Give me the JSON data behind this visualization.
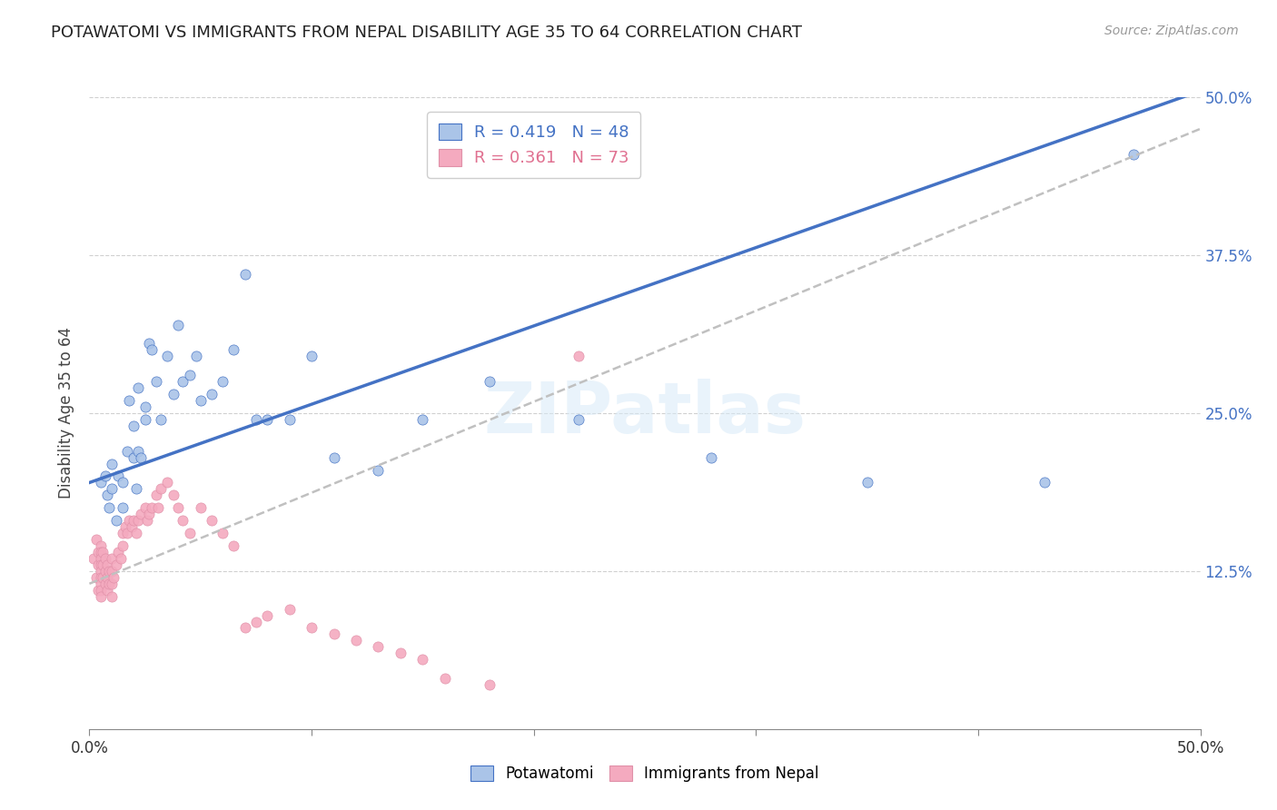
{
  "title": "POTAWATOMI VS IMMIGRANTS FROM NEPAL DISABILITY AGE 35 TO 64 CORRELATION CHART",
  "source": "Source: ZipAtlas.com",
  "ylabel": "Disability Age 35 to 64",
  "r_potawatomi": 0.419,
  "n_potawatomi": 48,
  "r_nepal": 0.361,
  "n_nepal": 73,
  "color_potawatomi": "#aac4e8",
  "color_nepal": "#f4aabf",
  "line_color_potawatomi": "#4472c4",
  "line_color_nepal": "#c0c0c0",
  "xlim": [
    0.0,
    0.5
  ],
  "ylim": [
    0.0,
    0.5
  ],
  "yticks": [
    0.125,
    0.25,
    0.375,
    0.5
  ],
  "ytick_labels": [
    "12.5%",
    "25.0%",
    "37.5%",
    "50.0%"
  ],
  "xticks": [
    0.0,
    0.1,
    0.2,
    0.3,
    0.4,
    0.5
  ],
  "xtick_labels": [
    "0.0%",
    "",
    "",
    "",
    "",
    "50.0%"
  ],
  "watermark": "ZIPatlas",
  "pot_intercept": 0.195,
  "pot_slope": 0.62,
  "nep_intercept": 0.115,
  "nep_slope": 0.72,
  "potawatomi_x": [
    0.005,
    0.007,
    0.008,
    0.009,
    0.01,
    0.01,
    0.012,
    0.013,
    0.015,
    0.015,
    0.017,
    0.018,
    0.02,
    0.02,
    0.021,
    0.022,
    0.022,
    0.023,
    0.025,
    0.025,
    0.027,
    0.028,
    0.03,
    0.032,
    0.035,
    0.038,
    0.04,
    0.042,
    0.045,
    0.048,
    0.05,
    0.055,
    0.06,
    0.065,
    0.07,
    0.075,
    0.08,
    0.09,
    0.1,
    0.11,
    0.13,
    0.15,
    0.18,
    0.22,
    0.28,
    0.35,
    0.43,
    0.47
  ],
  "potawatomi_y": [
    0.195,
    0.2,
    0.185,
    0.175,
    0.21,
    0.19,
    0.165,
    0.2,
    0.195,
    0.175,
    0.22,
    0.26,
    0.215,
    0.24,
    0.19,
    0.27,
    0.22,
    0.215,
    0.245,
    0.255,
    0.305,
    0.3,
    0.275,
    0.245,
    0.295,
    0.265,
    0.32,
    0.275,
    0.28,
    0.295,
    0.26,
    0.265,
    0.275,
    0.3,
    0.36,
    0.245,
    0.245,
    0.245,
    0.295,
    0.215,
    0.205,
    0.245,
    0.275,
    0.245,
    0.215,
    0.195,
    0.195,
    0.455
  ],
  "nepal_x": [
    0.002,
    0.003,
    0.003,
    0.004,
    0.004,
    0.004,
    0.005,
    0.005,
    0.005,
    0.005,
    0.005,
    0.005,
    0.005,
    0.005,
    0.005,
    0.006,
    0.006,
    0.006,
    0.007,
    0.007,
    0.007,
    0.008,
    0.008,
    0.008,
    0.009,
    0.009,
    0.01,
    0.01,
    0.01,
    0.01,
    0.011,
    0.012,
    0.013,
    0.014,
    0.015,
    0.015,
    0.016,
    0.017,
    0.018,
    0.019,
    0.02,
    0.021,
    0.022,
    0.023,
    0.025,
    0.026,
    0.027,
    0.028,
    0.03,
    0.031,
    0.032,
    0.035,
    0.038,
    0.04,
    0.042,
    0.045,
    0.05,
    0.055,
    0.06,
    0.065,
    0.07,
    0.075,
    0.08,
    0.09,
    0.1,
    0.11,
    0.12,
    0.13,
    0.14,
    0.15,
    0.16,
    0.18,
    0.22
  ],
  "nepal_y": [
    0.135,
    0.15,
    0.12,
    0.14,
    0.13,
    0.11,
    0.145,
    0.14,
    0.135,
    0.13,
    0.125,
    0.12,
    0.115,
    0.11,
    0.105,
    0.13,
    0.14,
    0.12,
    0.135,
    0.125,
    0.115,
    0.13,
    0.12,
    0.11,
    0.125,
    0.115,
    0.135,
    0.125,
    0.115,
    0.105,
    0.12,
    0.13,
    0.14,
    0.135,
    0.155,
    0.145,
    0.16,
    0.155,
    0.165,
    0.16,
    0.165,
    0.155,
    0.165,
    0.17,
    0.175,
    0.165,
    0.17,
    0.175,
    0.185,
    0.175,
    0.19,
    0.195,
    0.185,
    0.175,
    0.165,
    0.155,
    0.175,
    0.165,
    0.155,
    0.145,
    0.08,
    0.085,
    0.09,
    0.095,
    0.08,
    0.075,
    0.07,
    0.065,
    0.06,
    0.055,
    0.04,
    0.035,
    0.295
  ]
}
